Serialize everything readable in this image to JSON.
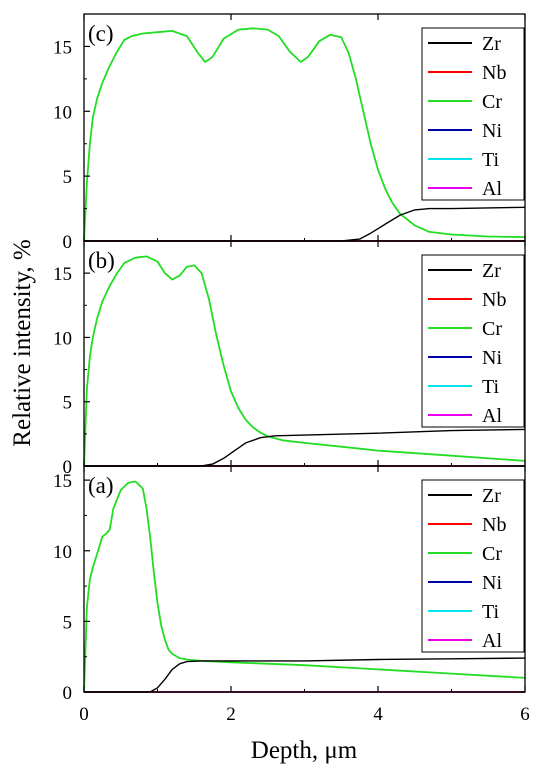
{
  "figure": {
    "ylabel": "Relative intensity, %",
    "xlabel": "Depth, μm"
  },
  "legend_entries": [
    {
      "name": "Zr",
      "color": "#000000"
    },
    {
      "name": "Nb",
      "color": "#ff0000"
    },
    {
      "name": "Cr",
      "color": "#22dd22"
    },
    {
      "name": "Ni",
      "color": "#0000aa"
    },
    {
      "name": "Ti",
      "color": "#00e5ee"
    },
    {
      "name": "Al",
      "color": "#ee00ee"
    }
  ],
  "chart_data": [
    {
      "type": "line",
      "panel_label": "(c)",
      "xlim": [
        0,
        6
      ],
      "ylim": [
        0,
        17.5
      ],
      "y_ticks": [
        "0",
        "5",
        "10",
        "15"
      ],
      "x_ticks": [],
      "legend_position": "top-right",
      "series": [
        {
          "name": "Zr",
          "color": "#000000",
          "x": [
            0,
            3.5,
            3.75,
            3.9,
            4.1,
            4.3,
            4.5,
            4.7,
            5.0,
            6.0
          ],
          "y": [
            0,
            0,
            0.15,
            0.6,
            1.3,
            2.0,
            2.4,
            2.5,
            2.5,
            2.6
          ]
        },
        {
          "name": "Nb",
          "color": "#ff0000",
          "x": [
            0,
            6
          ],
          "y": [
            0,
            0
          ]
        },
        {
          "name": "Cr",
          "color": "#22dd22",
          "x": [
            0,
            0.04,
            0.08,
            0.12,
            0.18,
            0.25,
            0.35,
            0.45,
            0.55,
            0.65,
            0.8,
            1.0,
            1.2,
            1.4,
            1.55,
            1.65,
            1.75,
            1.9,
            2.1,
            2.3,
            2.5,
            2.65,
            2.8,
            2.95,
            3.05,
            3.2,
            3.35,
            3.5,
            3.6,
            3.7,
            3.8,
            3.9,
            4.0,
            4.1,
            4.2,
            4.3,
            4.5,
            4.7,
            5.0,
            5.5,
            6.0
          ],
          "y": [
            0,
            4.5,
            7.5,
            9.5,
            11.0,
            12.2,
            13.5,
            14.6,
            15.5,
            15.8,
            16.0,
            16.1,
            16.2,
            15.8,
            14.5,
            13.8,
            14.2,
            15.6,
            16.3,
            16.4,
            16.3,
            15.8,
            14.6,
            13.8,
            14.2,
            15.4,
            15.9,
            15.7,
            14.5,
            12.5,
            10.0,
            7.5,
            5.5,
            4.0,
            2.9,
            2.1,
            1.2,
            0.7,
            0.5,
            0.35,
            0.3
          ]
        },
        {
          "name": "Ni",
          "color": "#0000aa",
          "x": [
            0,
            6
          ],
          "y": [
            0,
            0
          ]
        },
        {
          "name": "Ti",
          "color": "#00e5ee",
          "x": [
            0,
            6
          ],
          "y": [
            0,
            0
          ]
        },
        {
          "name": "Al",
          "color": "#ee00ee",
          "x": [
            0,
            6
          ],
          "y": [
            0,
            0
          ]
        }
      ]
    },
    {
      "type": "line",
      "panel_label": "(b)",
      "xlim": [
        0,
        6
      ],
      "ylim": [
        0,
        17.5
      ],
      "y_ticks": [
        "0",
        "5",
        "10",
        "15"
      ],
      "x_ticks": [],
      "legend_position": "top-right",
      "series": [
        {
          "name": "Zr",
          "color": "#000000",
          "x": [
            0,
            1.6,
            1.75,
            1.9,
            2.05,
            2.2,
            2.4,
            2.6,
            3.0,
            4.0,
            5.0,
            6.0
          ],
          "y": [
            0,
            0,
            0.15,
            0.6,
            1.2,
            1.8,
            2.2,
            2.35,
            2.4,
            2.55,
            2.75,
            2.85
          ]
        },
        {
          "name": "Nb",
          "color": "#ff0000",
          "x": [
            0,
            6
          ],
          "y": [
            0,
            0
          ]
        },
        {
          "name": "Cr",
          "color": "#22dd22",
          "x": [
            0,
            0.04,
            0.08,
            0.12,
            0.18,
            0.25,
            0.35,
            0.45,
            0.55,
            0.7,
            0.85,
            1.0,
            1.1,
            1.2,
            1.3,
            1.4,
            1.5,
            1.6,
            1.7,
            1.8,
            1.9,
            2.0,
            2.1,
            2.2,
            2.3,
            2.4,
            2.5,
            2.7,
            3.0,
            3.5,
            4.0,
            5.0,
            6.0
          ],
          "y": [
            0,
            6.0,
            8.5,
            10.0,
            11.5,
            12.8,
            14.0,
            15.0,
            15.8,
            16.2,
            16.3,
            15.9,
            15.0,
            14.5,
            14.8,
            15.5,
            15.6,
            15.0,
            13.0,
            10.2,
            7.8,
            5.8,
            4.5,
            3.6,
            3.0,
            2.6,
            2.3,
            2.0,
            1.8,
            1.5,
            1.2,
            0.8,
            0.4
          ]
        },
        {
          "name": "Ni",
          "color": "#0000aa",
          "x": [
            0,
            6
          ],
          "y": [
            0,
            0
          ]
        },
        {
          "name": "Ti",
          "color": "#00e5ee",
          "x": [
            0,
            6
          ],
          "y": [
            0,
            0
          ]
        },
        {
          "name": "Al",
          "color": "#ee00ee",
          "x": [
            0,
            6
          ],
          "y": [
            0,
            0
          ]
        }
      ]
    },
    {
      "type": "line",
      "panel_label": "(a)",
      "xlim": [
        0,
        6
      ],
      "ylim": [
        0,
        16
      ],
      "y_ticks": [
        "0",
        "5",
        "10",
        "15"
      ],
      "x_ticks": [
        "0",
        "2",
        "4",
        "6"
      ],
      "legend_position": "top-right",
      "series": [
        {
          "name": "Zr",
          "color": "#000000",
          "x": [
            0,
            0.9,
            1.0,
            1.1,
            1.2,
            1.3,
            1.4,
            1.6,
            2.0,
            3.0,
            4.0,
            5.0,
            6.0
          ],
          "y": [
            0,
            0,
            0.3,
            0.9,
            1.6,
            2.0,
            2.15,
            2.2,
            2.2,
            2.2,
            2.3,
            2.35,
            2.4
          ]
        },
        {
          "name": "Nb",
          "color": "#ff0000",
          "x": [
            0,
            6
          ],
          "y": [
            0,
            0
          ]
        },
        {
          "name": "Cr",
          "color": "#22dd22",
          "x": [
            0,
            0.04,
            0.08,
            0.12,
            0.18,
            0.25,
            0.3,
            0.35,
            0.4,
            0.5,
            0.6,
            0.7,
            0.8,
            0.85,
            0.9,
            0.95,
            1.0,
            1.05,
            1.1,
            1.15,
            1.2,
            1.3,
            1.4,
            1.6,
            2.0,
            3.0,
            4.0,
            5.0,
            6.0
          ],
          "y": [
            0,
            6.0,
            8.0,
            8.8,
            9.8,
            11.0,
            11.2,
            11.5,
            13.0,
            14.3,
            14.8,
            14.9,
            14.4,
            13.0,
            11.0,
            8.5,
            6.3,
            4.7,
            3.7,
            3.0,
            2.7,
            2.4,
            2.3,
            2.2,
            2.1,
            1.9,
            1.6,
            1.3,
            1.0
          ]
        },
        {
          "name": "Ni",
          "color": "#0000aa",
          "x": [
            0,
            6
          ],
          "y": [
            0,
            0
          ]
        },
        {
          "name": "Ti",
          "color": "#00e5ee",
          "x": [
            0,
            6
          ],
          "y": [
            0,
            0
          ]
        },
        {
          "name": "Al",
          "color": "#ee00ee",
          "x": [
            0,
            6
          ],
          "y": [
            0,
            0
          ]
        }
      ]
    }
  ]
}
